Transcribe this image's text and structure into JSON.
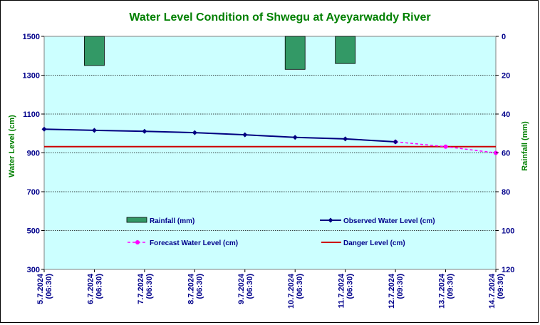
{
  "chart_data": {
    "type": "line",
    "title": "Water Level Condition of Shwegu at Ayeyarwaddy River",
    "ylabel": "Water Level (cm)",
    "y2label": "Rainfall (mm)",
    "ylim": [
      300,
      1500
    ],
    "yticks": [
      "300",
      "500",
      "700",
      "900",
      "1100",
      "1300",
      "1500"
    ],
    "y2lim": [
      0,
      120
    ],
    "y2ticks": [
      "0",
      "20",
      "40",
      "60",
      "80",
      "100",
      "120"
    ],
    "y2_reversed": true,
    "grid": "horizontal dotted",
    "categories": [
      {
        "date": "5.7.2024",
        "time": "(06:30)"
      },
      {
        "date": "6.7.2024",
        "time": "(06:30)"
      },
      {
        "date": "7.7.2024",
        "time": "(06:30)"
      },
      {
        "date": "8.7.2024",
        "time": "(06:30)"
      },
      {
        "date": "9.7.2024",
        "time": "(06:30)"
      },
      {
        "date": "10.7.2024",
        "time": "(06:30)"
      },
      {
        "date": "11.7.2024",
        "time": "(06:30)"
      },
      {
        "date": "12.7.2024",
        "time": "(09:30)"
      },
      {
        "date": "13.7.2024",
        "time": "(09:30)"
      },
      {
        "date": "14.7.2024",
        "time": "(09:30)"
      }
    ],
    "series": [
      {
        "name": "Rainfall (mm)",
        "kind": "bar",
        "axis": "right",
        "color": "#339966",
        "values": [
          null,
          15,
          null,
          null,
          null,
          17,
          14,
          null,
          null,
          null
        ]
      },
      {
        "name": "Observed Water Level (cm)",
        "kind": "line",
        "axis": "left",
        "color": "#000080",
        "values": [
          1022,
          1016,
          1011,
          1004,
          993,
          980,
          972,
          957,
          null,
          null
        ]
      },
      {
        "name": "Forecast Water Level (cm)",
        "kind": "dashed-line",
        "axis": "left",
        "color": "#ff00ff",
        "values": [
          null,
          null,
          null,
          null,
          null,
          null,
          null,
          957,
          932,
          900
        ]
      },
      {
        "name": "Danger Level (cm)",
        "kind": "hline",
        "axis": "left",
        "color": "#cc0000",
        "value": 932
      }
    ],
    "colors": {
      "plot_background": "#ccffff",
      "title": "#008000",
      "ticks": "#00008b"
    }
  }
}
